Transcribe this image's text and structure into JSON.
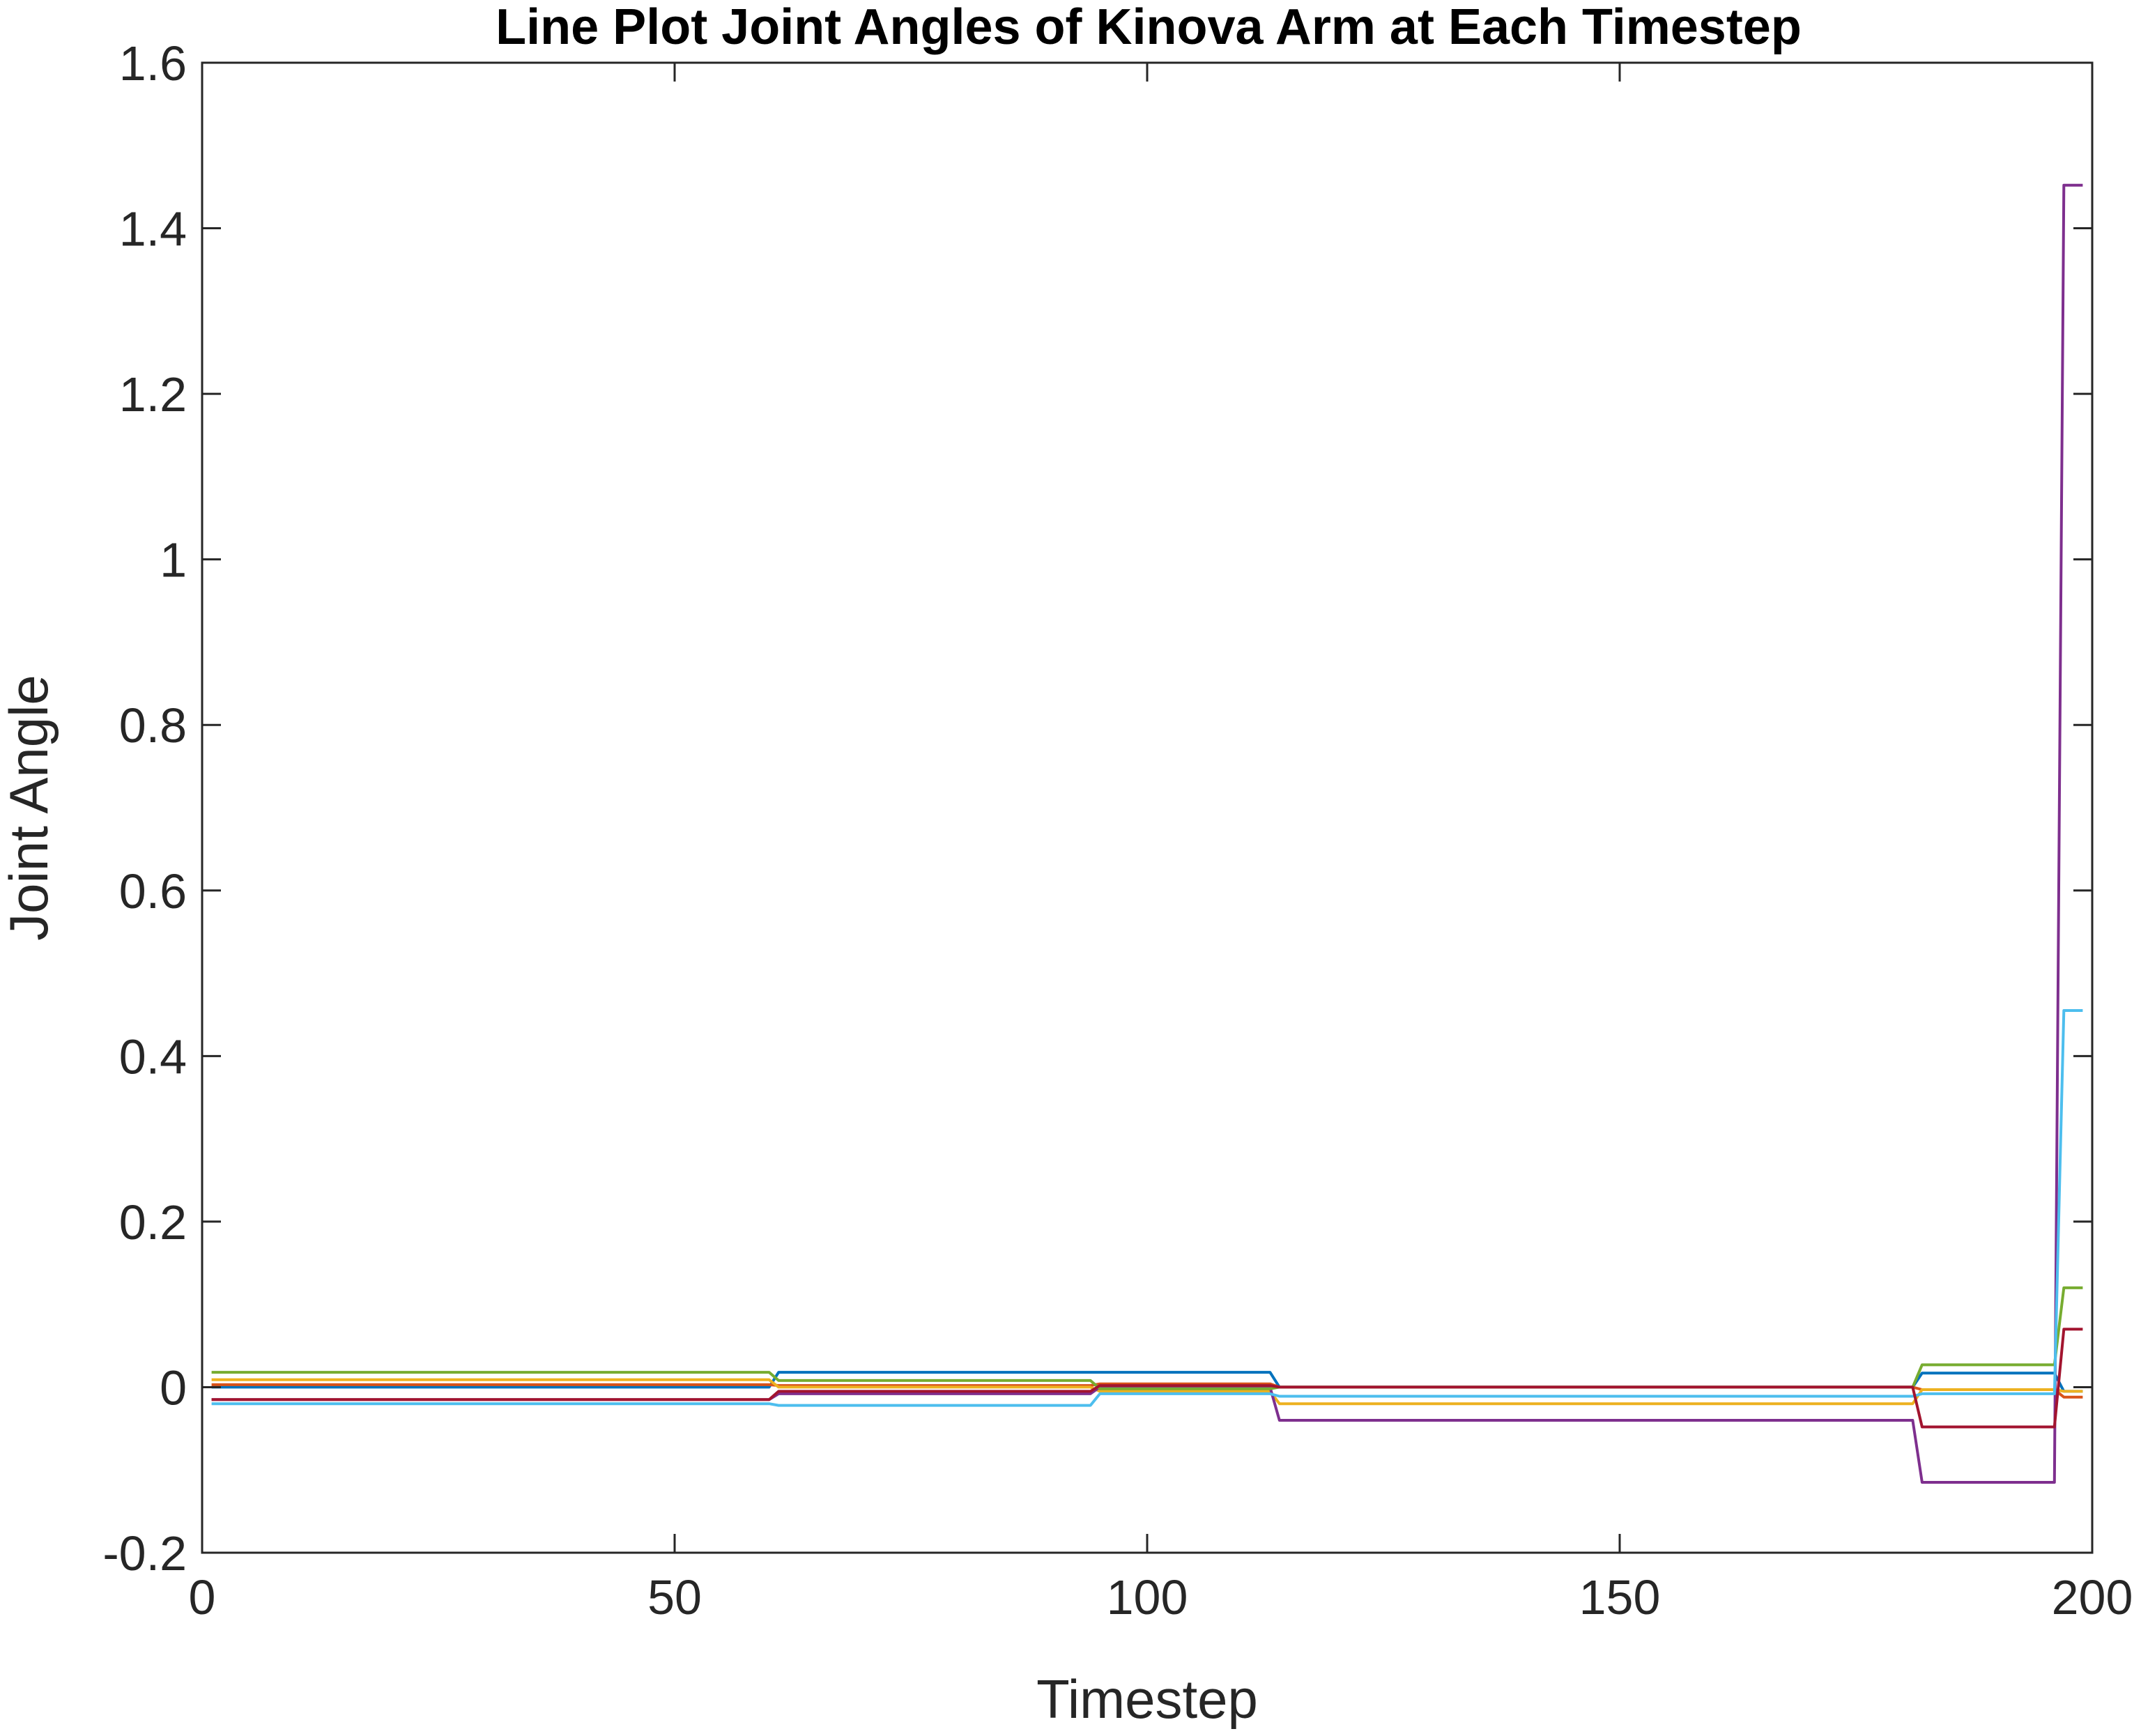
{
  "chart_data": {
    "type": "line",
    "title": "Line Plot Joint Angles of Kinova Arm at Each Timestep",
    "xlabel": "Timestep",
    "ylabel": "Joint Angle",
    "xlim": [
      0,
      200
    ],
    "ylim": [
      -0.2,
      1.6
    ],
    "xticks": [
      0,
      50,
      100,
      150,
      200
    ],
    "xtick_labels": [
      "0",
      "50",
      "100",
      "150",
      "200"
    ],
    "yticks": [
      -0.2,
      0,
      0.2,
      0.4,
      0.6,
      0.8,
      1,
      1.2,
      1.4,
      1.6
    ],
    "ytick_labels": [
      "-0.2",
      "0",
      "0.2",
      "0.4",
      "0.6",
      "0.8",
      "1",
      "1.2",
      "1.4",
      "1.6"
    ],
    "grid": false,
    "box": true,
    "series": [
      {
        "color": "#0072BD",
        "x": [
          1,
          60,
          61,
          113,
          114,
          181,
          182,
          196,
          197,
          199
        ],
        "y": [
          0.0,
          0.0,
          0.018,
          0.018,
          0.0,
          0.0,
          0.017,
          0.017,
          -0.005,
          -0.005
        ]
      },
      {
        "color": "#D95319",
        "x": [
          1,
          60,
          61,
          94,
          95,
          113,
          114,
          181,
          182,
          196,
          197,
          199
        ],
        "y": [
          0.003,
          0.003,
          0.002,
          0.002,
          0.004,
          0.004,
          0.0,
          0.0,
          -0.003,
          -0.003,
          -0.012,
          -0.012
        ]
      },
      {
        "color": "#EDB120",
        "x": [
          1,
          60,
          61,
          94,
          95,
          113,
          114,
          181,
          182,
          196,
          197,
          199
        ],
        "y": [
          0.009,
          0.009,
          0.0,
          0.0,
          -0.005,
          -0.005,
          -0.02,
          -0.02,
          -0.003,
          -0.003,
          -0.005,
          -0.005
        ]
      },
      {
        "color": "#7E2F8E",
        "x": [
          1,
          60,
          61,
          94,
          95,
          113,
          114,
          181,
          182,
          196,
          197,
          199
        ],
        "y": [
          -0.015,
          -0.015,
          -0.008,
          -0.008,
          0.0,
          0.0,
          -0.04,
          -0.04,
          -0.115,
          -0.115,
          1.452,
          1.452
        ]
      },
      {
        "color": "#77AC30",
        "x": [
          1,
          60,
          61,
          94,
          95,
          113,
          114,
          181,
          182,
          196,
          197,
          199
        ],
        "y": [
          0.018,
          0.018,
          0.008,
          0.008,
          -0.002,
          -0.002,
          0.0,
          0.0,
          0.027,
          0.027,
          0.12,
          0.12
        ]
      },
      {
        "color": "#4DBEEE",
        "x": [
          1,
          60,
          61,
          94,
          95,
          113,
          114,
          181,
          182,
          196,
          197,
          199
        ],
        "y": [
          -0.02,
          -0.02,
          -0.022,
          -0.022,
          -0.008,
          -0.008,
          -0.011,
          -0.011,
          -0.008,
          -0.008,
          0.455,
          0.455
        ]
      },
      {
        "color": "#A2142F",
        "x": [
          1,
          60,
          61,
          94,
          95,
          113,
          114,
          181,
          182,
          196,
          197,
          199
        ],
        "y": [
          -0.015,
          -0.015,
          -0.005,
          -0.005,
          0.002,
          0.002,
          0.0,
          0.0,
          -0.048,
          -0.048,
          0.07,
          0.07
        ]
      }
    ]
  }
}
